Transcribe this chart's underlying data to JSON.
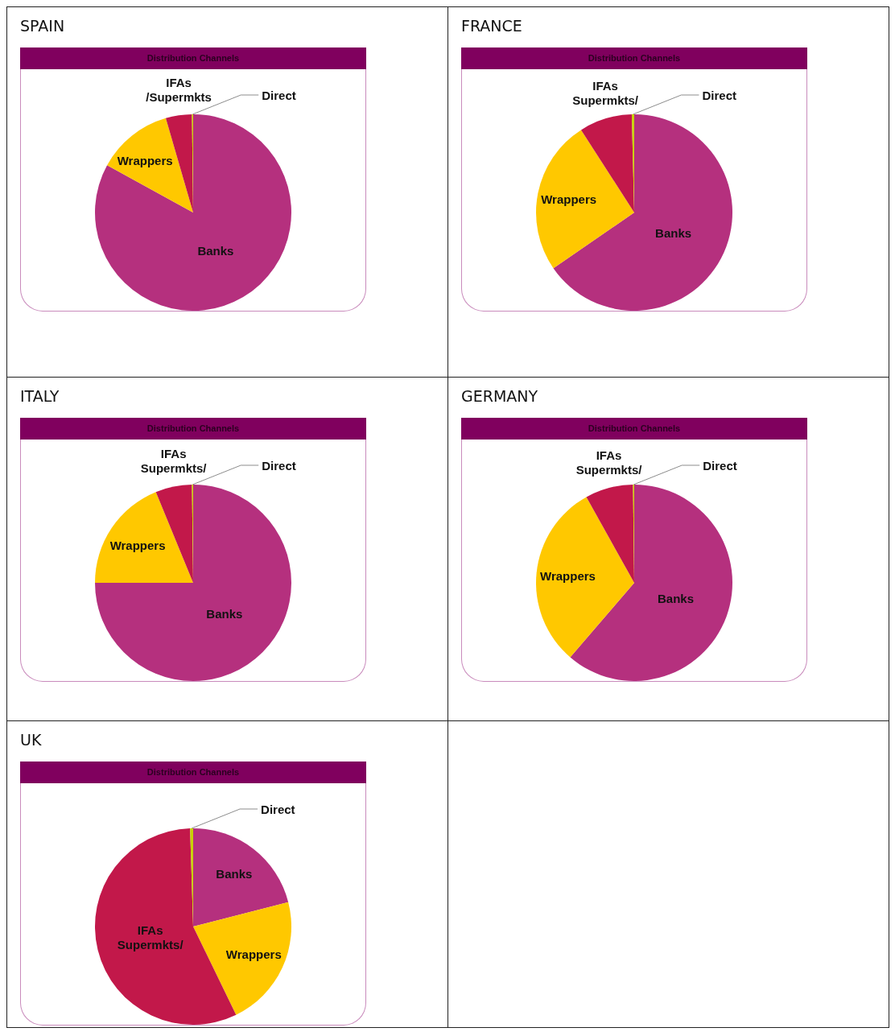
{
  "chart_data": [
    {
      "type": "pie",
      "title": "SPAIN",
      "subtitle": "Distribution Channels",
      "categories": [
        "Banks",
        "Wrappers",
        "IFAs /Supermkts",
        "Direct"
      ],
      "values": [
        83,
        12.5,
        4.3,
        0.2
      ],
      "colors": [
        "#b5307e",
        "#ffc800",
        "#c2184a",
        "#c8d200"
      ]
    },
    {
      "type": "pie",
      "title": "FRANCE",
      "subtitle": "Distribution Channels",
      "categories": [
        "Banks",
        "Wrappers",
        "IFAs Supermkts/",
        "Direct"
      ],
      "values": [
        65.4,
        25.5,
        8.7,
        0.4
      ],
      "colors": [
        "#b5307e",
        "#ffc800",
        "#c2184a",
        "#c8d200"
      ]
    },
    {
      "type": "pie",
      "title": "ITALY",
      "subtitle": "Distribution Channels",
      "categories": [
        "Banks",
        "Wrappers",
        "IFAs Supermkts/",
        "Direct"
      ],
      "values": [
        75,
        18.8,
        6,
        0.2
      ],
      "colors": [
        "#b5307e",
        "#ffc800",
        "#c2184a",
        "#c8d200"
      ]
    },
    {
      "type": "pie",
      "title": "GERMANY",
      "subtitle": "Distribution Channels",
      "categories": [
        "Banks",
        "Wrappers",
        "IFAs Supermkts/",
        "Direct"
      ],
      "values": [
        61.3,
        30.6,
        7.9,
        0.2
      ],
      "colors": [
        "#b5307e",
        "#ffc800",
        "#c2184a",
        "#c8d200"
      ]
    },
    {
      "type": "pie",
      "title": "UK",
      "subtitle": "Distribution Channels",
      "categories": [
        "Banks",
        "Wrappers",
        "IFAs Supermkts/",
        "Direct"
      ],
      "values": [
        21,
        21.8,
        56.7,
        0.5
      ],
      "colors": [
        "#b5307e",
        "#ffc800",
        "#c2184a",
        "#c8d200"
      ]
    }
  ]
}
